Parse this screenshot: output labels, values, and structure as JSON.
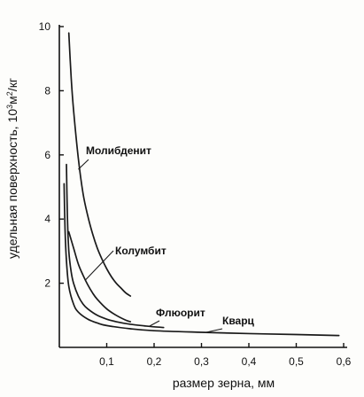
{
  "chart_data": {
    "type": "line",
    "title": "",
    "xlabel": "размер зерна, мм",
    "ylabel": "удельная поверхность, 10",
    "ylabel_sup1": "3",
    "ylabel_mid": "м",
    "ylabel_sup2": "2",
    "ylabel_end": "/кг",
    "xlim": [
      0,
      0.6
    ],
    "ylim": [
      0,
      10
    ],
    "grid": false,
    "legend": "none",
    "x_ticks": [
      {
        "value": 0.1,
        "label": "0,1"
      },
      {
        "value": 0.2,
        "label": "0,2"
      },
      {
        "value": 0.3,
        "label": "0,3"
      },
      {
        "value": 0.4,
        "label": "0,4"
      },
      {
        "value": 0.5,
        "label": "0,5"
      },
      {
        "value": 0.6,
        "label": "0,6"
      }
    ],
    "y_ticks": [
      {
        "value": 2,
        "label": "2"
      },
      {
        "value": 4,
        "label": "4"
      },
      {
        "value": 6,
        "label": "6"
      },
      {
        "value": 8,
        "label": "8"
      },
      {
        "value": 10,
        "label": "10"
      }
    ],
    "series": [
      {
        "name": "Молибденит",
        "x": [
          0.02,
          0.025,
          0.03,
          0.04,
          0.05,
          0.06,
          0.07,
          0.08,
          0.09,
          0.1,
          0.11,
          0.12,
          0.13,
          0.14,
          0.15
        ],
        "y": [
          9.8,
          8.4,
          7.4,
          5.9,
          4.8,
          4.1,
          3.55,
          3.1,
          2.75,
          2.45,
          2.2,
          2.0,
          1.85,
          1.7,
          1.6
        ]
      },
      {
        "name": "Колумбит",
        "x": [
          0.02,
          0.03,
          0.04,
          0.05,
          0.06,
          0.07,
          0.08,
          0.1,
          0.12,
          0.14,
          0.15
        ],
        "y": [
          3.6,
          3.1,
          2.6,
          2.25,
          1.95,
          1.7,
          1.5,
          1.2,
          1.0,
          0.85,
          0.8
        ]
      },
      {
        "name": "Флюорит",
        "x": [
          0.015,
          0.017,
          0.02,
          0.025,
          0.03,
          0.04,
          0.05,
          0.06,
          0.08,
          0.1,
          0.12,
          0.15,
          0.18,
          0.2,
          0.22
        ],
        "y": [
          5.7,
          4.1,
          3.0,
          2.35,
          2.0,
          1.6,
          1.35,
          1.2,
          1.0,
          0.88,
          0.8,
          0.72,
          0.67,
          0.64,
          0.62
        ]
      },
      {
        "name": "Кварц",
        "x": [
          0.01,
          0.012,
          0.015,
          0.02,
          0.03,
          0.04,
          0.06,
          0.08,
          0.1,
          0.15,
          0.2,
          0.3,
          0.4,
          0.5,
          0.59
        ],
        "y": [
          5.1,
          3.7,
          2.7,
          1.9,
          1.35,
          1.1,
          0.88,
          0.76,
          0.68,
          0.58,
          0.52,
          0.47,
          0.43,
          0.4,
          0.37
        ]
      }
    ],
    "series_labels": [
      {
        "text": "Молибденит"
      },
      {
        "text": "Колумбит"
      },
      {
        "text": "Флюорит"
      },
      {
        "text": "Кварц"
      }
    ],
    "colors": {
      "line": "#1a1a1a",
      "axis": "#111111",
      "background": "#fdfdfb"
    }
  }
}
